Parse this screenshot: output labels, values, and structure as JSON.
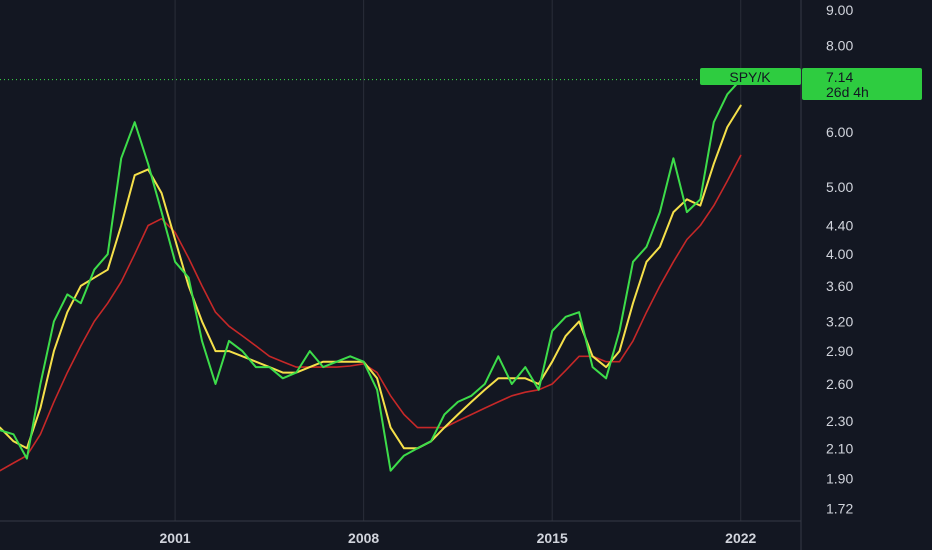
{
  "chart_data": {
    "type": "line",
    "scale": "log",
    "ylim": [
      1.65,
      9.3
    ],
    "xlim": [
      1994.5,
      2024.2
    ],
    "grid": true,
    "y_ticks": [
      "9.00",
      "8.00",
      "6.00",
      "5.00",
      "4.40",
      "4.00",
      "3.60",
      "3.20",
      "2.90",
      "2.60",
      "2.30",
      "2.10",
      "1.90",
      "1.72"
    ],
    "x_ticks": [
      "2001",
      "2008",
      "2015",
      "2022"
    ],
    "x_tick_values": [
      2001,
      2008,
      2015,
      2022
    ],
    "colors": {
      "price": "#3ddc4a",
      "ma_fast": "#f5e04a",
      "ma_slow": "#c62828",
      "background": "#131722",
      "grid": "#2a2e39",
      "tag": "#2ecc40"
    },
    "series": [
      {
        "key": "price",
        "x": [
          1994.5,
          1995.0,
          1995.5,
          1996.0,
          1996.5,
          1997.0,
          1997.5,
          1998.0,
          1998.5,
          1999.0,
          1999.5,
          2000.0,
          2000.5,
          2001.0,
          2001.5,
          2002.0,
          2002.5,
          2003.0,
          2003.5,
          2004.0,
          2004.5,
          2005.0,
          2005.5,
          2006.0,
          2006.5,
          2007.0,
          2007.5,
          2008.0,
          2008.5,
          2009.0,
          2009.5,
          2010.0,
          2010.5,
          2011.0,
          2011.5,
          2012.0,
          2012.5,
          2013.0,
          2013.5,
          2014.0,
          2014.5,
          2015.0,
          2015.5,
          2016.0,
          2016.5,
          2017.0,
          2017.5,
          2018.0,
          2018.5,
          2019.0,
          2019.5,
          2020.0,
          2020.5,
          2021.0,
          2021.5,
          2022.0
        ],
        "y": [
          2.23,
          2.2,
          2.03,
          2.6,
          3.2,
          3.5,
          3.4,
          3.8,
          4.0,
          5.5,
          6.2,
          5.4,
          4.6,
          3.9,
          3.7,
          3.0,
          2.6,
          3.0,
          2.9,
          2.75,
          2.75,
          2.65,
          2.7,
          2.9,
          2.75,
          2.8,
          2.85,
          2.8,
          2.55,
          1.95,
          2.05,
          2.1,
          2.15,
          2.35,
          2.45,
          2.5,
          2.6,
          2.85,
          2.6,
          2.75,
          2.55,
          3.1,
          3.25,
          3.3,
          2.75,
          2.65,
          3.1,
          3.9,
          4.1,
          4.6,
          5.5,
          4.6,
          4.8,
          6.2,
          6.8,
          7.14
        ]
      },
      {
        "key": "ma_fast",
        "x": [
          1994.5,
          1995.0,
          1995.5,
          1996.0,
          1996.5,
          1997.0,
          1997.5,
          1998.0,
          1998.5,
          1999.0,
          1999.5,
          2000.0,
          2000.5,
          2001.0,
          2001.5,
          2002.0,
          2002.5,
          2003.0,
          2003.5,
          2004.0,
          2004.5,
          2005.0,
          2005.5,
          2006.0,
          2006.5,
          2007.0,
          2007.5,
          2008.0,
          2008.5,
          2009.0,
          2009.5,
          2010.0,
          2010.5,
          2011.0,
          2011.5,
          2012.0,
          2012.5,
          2013.0,
          2013.5,
          2014.0,
          2014.5,
          2015.0,
          2015.5,
          2016.0,
          2016.5,
          2017.0,
          2017.5,
          2018.0,
          2018.5,
          2019.0,
          2019.5,
          2020.0,
          2020.5,
          2021.0,
          2021.5,
          2022.0
        ],
        "y": [
          2.25,
          2.15,
          2.1,
          2.4,
          2.9,
          3.3,
          3.6,
          3.7,
          3.8,
          4.4,
          5.2,
          5.3,
          4.9,
          4.2,
          3.6,
          3.2,
          2.9,
          2.9,
          2.85,
          2.8,
          2.75,
          2.7,
          2.7,
          2.75,
          2.8,
          2.8,
          2.8,
          2.8,
          2.65,
          2.25,
          2.1,
          2.1,
          2.15,
          2.25,
          2.35,
          2.45,
          2.55,
          2.65,
          2.65,
          2.65,
          2.6,
          2.8,
          3.05,
          3.2,
          2.85,
          2.75,
          2.9,
          3.4,
          3.9,
          4.1,
          4.6,
          4.8,
          4.7,
          5.4,
          6.1,
          6.55
        ]
      },
      {
        "key": "ma_slow",
        "x": [
          1994.5,
          1995.0,
          1995.5,
          1996.0,
          1996.5,
          1997.0,
          1997.5,
          1998.0,
          1998.5,
          1999.0,
          1999.5,
          2000.0,
          2000.5,
          2001.0,
          2001.5,
          2002.0,
          2002.5,
          2003.0,
          2003.5,
          2004.0,
          2004.5,
          2005.0,
          2005.5,
          2006.0,
          2006.5,
          2007.0,
          2007.5,
          2008.0,
          2008.5,
          2009.0,
          2009.5,
          2010.0,
          2010.5,
          2011.0,
          2011.5,
          2012.0,
          2012.5,
          2013.0,
          2013.5,
          2014.0,
          2014.5,
          2015.0,
          2015.5,
          2016.0,
          2016.5,
          2017.0,
          2017.5,
          2018.0,
          2018.5,
          2019.0,
          2019.5,
          2020.0,
          2020.5,
          2021.0,
          2021.5,
          2022.0
        ],
        "y": [
          1.95,
          2.0,
          2.05,
          2.2,
          2.45,
          2.7,
          2.95,
          3.2,
          3.4,
          3.65,
          4.0,
          4.4,
          4.5,
          4.3,
          3.95,
          3.6,
          3.3,
          3.15,
          3.05,
          2.95,
          2.85,
          2.8,
          2.75,
          2.75,
          2.75,
          2.75,
          2.76,
          2.78,
          2.7,
          2.5,
          2.35,
          2.25,
          2.25,
          2.25,
          2.3,
          2.35,
          2.4,
          2.45,
          2.5,
          2.53,
          2.55,
          2.6,
          2.72,
          2.85,
          2.85,
          2.8,
          2.8,
          3.0,
          3.3,
          3.6,
          3.9,
          4.2,
          4.4,
          4.7,
          5.1,
          5.55
        ]
      }
    ]
  },
  "price_tag": {
    "symbol": "SPY/K",
    "value": "7.14",
    "countdown": "26d 4h"
  }
}
